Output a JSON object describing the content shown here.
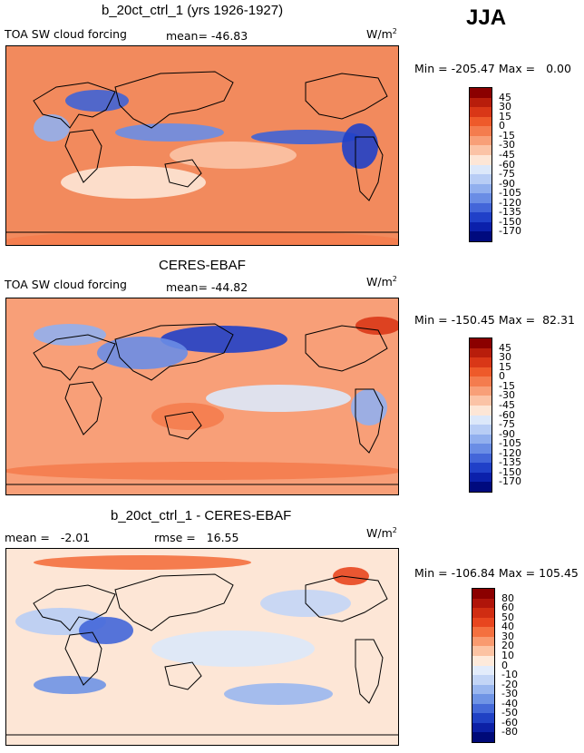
{
  "season": "JJA",
  "chart_data": [
    {
      "type": "heatmap",
      "title": "b_20ct_ctrl_1 (yrs 1926-1927)",
      "variable": "TOA SW cloud forcing",
      "mean_label": "mean=",
      "mean": "-46.83",
      "units": "W/m",
      "units_exp": "2",
      "min_label": "Min =",
      "min": "-205.47",
      "max_label": "Max =",
      "max": "0.00",
      "colorbar_levels": [
        "45",
        "30",
        "15",
        "0",
        "-15",
        "-30",
        "-45",
        "-60",
        "-75",
        "-90",
        "-105",
        "-120",
        "-135",
        "-150",
        "-170"
      ],
      "colorbar_colors": [
        "#8b0000",
        "#b81d0b",
        "#d93717",
        "#ee5a2a",
        "#f47c4e",
        "#f89f78",
        "#fbc3a6",
        "#fde6d6",
        "#dce8fa",
        "#b8cdf5",
        "#91afee",
        "#6a8de5",
        "#4366d9",
        "#2040c8",
        "#0b20ab",
        "#000a7e"
      ]
    },
    {
      "type": "heatmap",
      "title": "CERES-EBAF",
      "variable": "TOA SW cloud forcing",
      "mean_label": "mean=",
      "mean": "-44.82",
      "units": "W/m",
      "units_exp": "2",
      "min_label": "Min =",
      "min": "-150.45",
      "max_label": "Max =",
      "max": "82.31",
      "colorbar_levels": [
        "45",
        "30",
        "15",
        "0",
        "-15",
        "-30",
        "-45",
        "-60",
        "-75",
        "-90",
        "-105",
        "-120",
        "-135",
        "-150",
        "-170"
      ],
      "colorbar_colors": [
        "#8b0000",
        "#b81d0b",
        "#d93717",
        "#ee5a2a",
        "#f47c4e",
        "#f89f78",
        "#fbc3a6",
        "#fde6d6",
        "#dce8fa",
        "#b8cdf5",
        "#91afee",
        "#6a8de5",
        "#4366d9",
        "#2040c8",
        "#0b20ab",
        "#000a7e"
      ]
    },
    {
      "type": "heatmap",
      "title": "b_20ct_ctrl_1 - CERES-EBAF",
      "mean_label": "mean =",
      "mean": "-2.01",
      "rmse_label": "rmse =",
      "rmse": "16.55",
      "units": "W/m",
      "units_exp": "2",
      "min_label": "Min =",
      "min": "-106.84",
      "max_label": "Max =",
      "max": "105.45",
      "colorbar_levels": [
        "80",
        "60",
        "50",
        "40",
        "30",
        "20",
        "10",
        "0",
        "-10",
        "-20",
        "-30",
        "-40",
        "-50",
        "-60",
        "-80"
      ],
      "colorbar_colors": [
        "#8b0000",
        "#b0150a",
        "#d02d12",
        "#e8461f",
        "#f4703f",
        "#f99a6f",
        "#fcc3a3",
        "#feeadb",
        "#e3ecfb",
        "#c3d5f6",
        "#9ab7ef",
        "#6f94e5",
        "#4469d8",
        "#2041c4",
        "#0c20a5",
        "#000a78"
      ]
    }
  ]
}
